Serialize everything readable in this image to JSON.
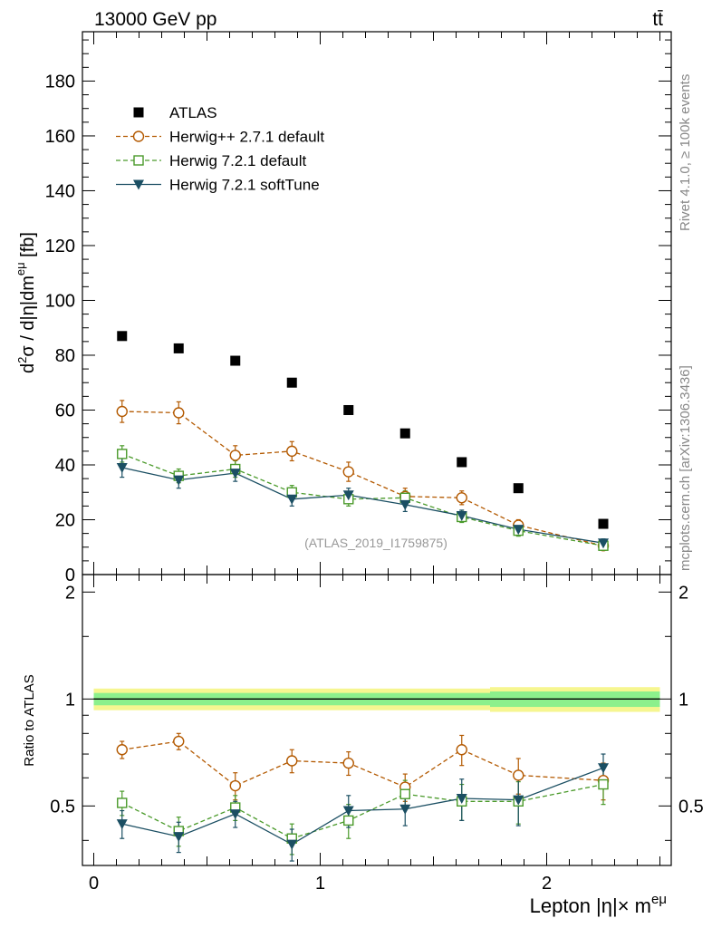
{
  "header": {
    "energy_label": "13000 GeV pp",
    "process_label": "tt̄"
  },
  "side_labels": {
    "rivet": "Rivet 4.1.0, ≥ 100k events",
    "source": "mcplots.cern.ch [arXiv:1306.3436]"
  },
  "chart_data": {
    "type": "scatter",
    "analysis_label": "(ATLAS_2019_I1759875)",
    "xlabel": "Lepton |η|× m^eμ",
    "ylabel": "d²σ / d|η|dm^eμ [fb]",
    "ratio_ylabel": "Ratio to ATLAS",
    "xlim": [
      -0.05,
      2.55
    ],
    "ylim": [
      0,
      198
    ],
    "ratio_ylim": [
      0.34,
      2.24
    ],
    "x_ticks": [
      "0",
      "1",
      "2"
    ],
    "y_ticks": [
      "0",
      "20",
      "40",
      "60",
      "80",
      "100",
      "120",
      "140",
      "160",
      "180"
    ],
    "ratio_ticks": [
      "0.5",
      "1",
      "2"
    ],
    "x": [
      0.125,
      0.375,
      0.625,
      0.875,
      1.125,
      1.375,
      1.625,
      1.875,
      2.25
    ],
    "x_edges": [
      0,
      0.25,
      0.5,
      0.75,
      1.0,
      1.25,
      1.5,
      1.75,
      2.0,
      2.5
    ],
    "reference": {
      "name": "ATLAS",
      "color": "#000000",
      "values": [
        87,
        82.5,
        78,
        70,
        60,
        51.5,
        41,
        31.5,
        18.5
      ],
      "band_inner": [
        0.04,
        0.04,
        0.04,
        0.04,
        0.04,
        0.04,
        0.04,
        0.05,
        0.05
      ],
      "band_outer": [
        0.07,
        0.07,
        0.07,
        0.07,
        0.07,
        0.07,
        0.07,
        0.08,
        0.08
      ]
    },
    "series": [
      {
        "name": "Herwig++ 2.7.1 default",
        "color": "#b35900",
        "marker": "open-circle",
        "dash": "dashed",
        "values": [
          59.5,
          59,
          43.5,
          45,
          37.5,
          28.5,
          28,
          18,
          10.5
        ],
        "errors": [
          4,
          4,
          3.5,
          3.5,
          3.5,
          3,
          2.5,
          2,
          1.5
        ],
        "ratio": [
          0.72,
          0.76,
          0.57,
          0.67,
          0.66,
          0.565,
          0.72,
          0.61,
          0.59
        ],
        "ratio_errors": [
          0.04,
          0.04,
          0.05,
          0.05,
          0.05,
          0.05,
          0.07,
          0.07,
          0.07
        ]
      },
      {
        "name": "Herwig 7.2.1 default",
        "color": "#4a9a2a",
        "marker": "open-square",
        "dash": "dashed",
        "values": [
          44,
          36,
          38.5,
          30,
          27.5,
          28,
          21,
          16,
          10.5
        ],
        "errors": [
          3,
          2.5,
          3,
          2.5,
          2.5,
          2.5,
          2,
          2,
          1.5
        ],
        "ratio": [
          0.51,
          0.425,
          0.495,
          0.405,
          0.455,
          0.54,
          0.515,
          0.515,
          0.575
        ],
        "ratio_errors": [
          0.04,
          0.04,
          0.04,
          0.04,
          0.05,
          0.05,
          0.06,
          0.07,
          0.07
        ]
      },
      {
        "name": "Herwig 7.2.1 softTune",
        "color": "#1b4f63",
        "marker": "filled-triangle-down",
        "dash": "solid",
        "values": [
          39,
          34.5,
          37,
          27.5,
          29,
          25.5,
          21.5,
          16.5,
          11.5
        ],
        "errors": [
          3.5,
          3,
          3,
          2.5,
          2.5,
          2.5,
          2,
          2,
          1.5
        ],
        "ratio": [
          0.445,
          0.41,
          0.475,
          0.39,
          0.485,
          0.49,
          0.525,
          0.52,
          0.64
        ],
        "ratio_errors": [
          0.04,
          0.04,
          0.04,
          0.04,
          0.05,
          0.05,
          0.07,
          0.08,
          0.06
        ]
      }
    ]
  }
}
